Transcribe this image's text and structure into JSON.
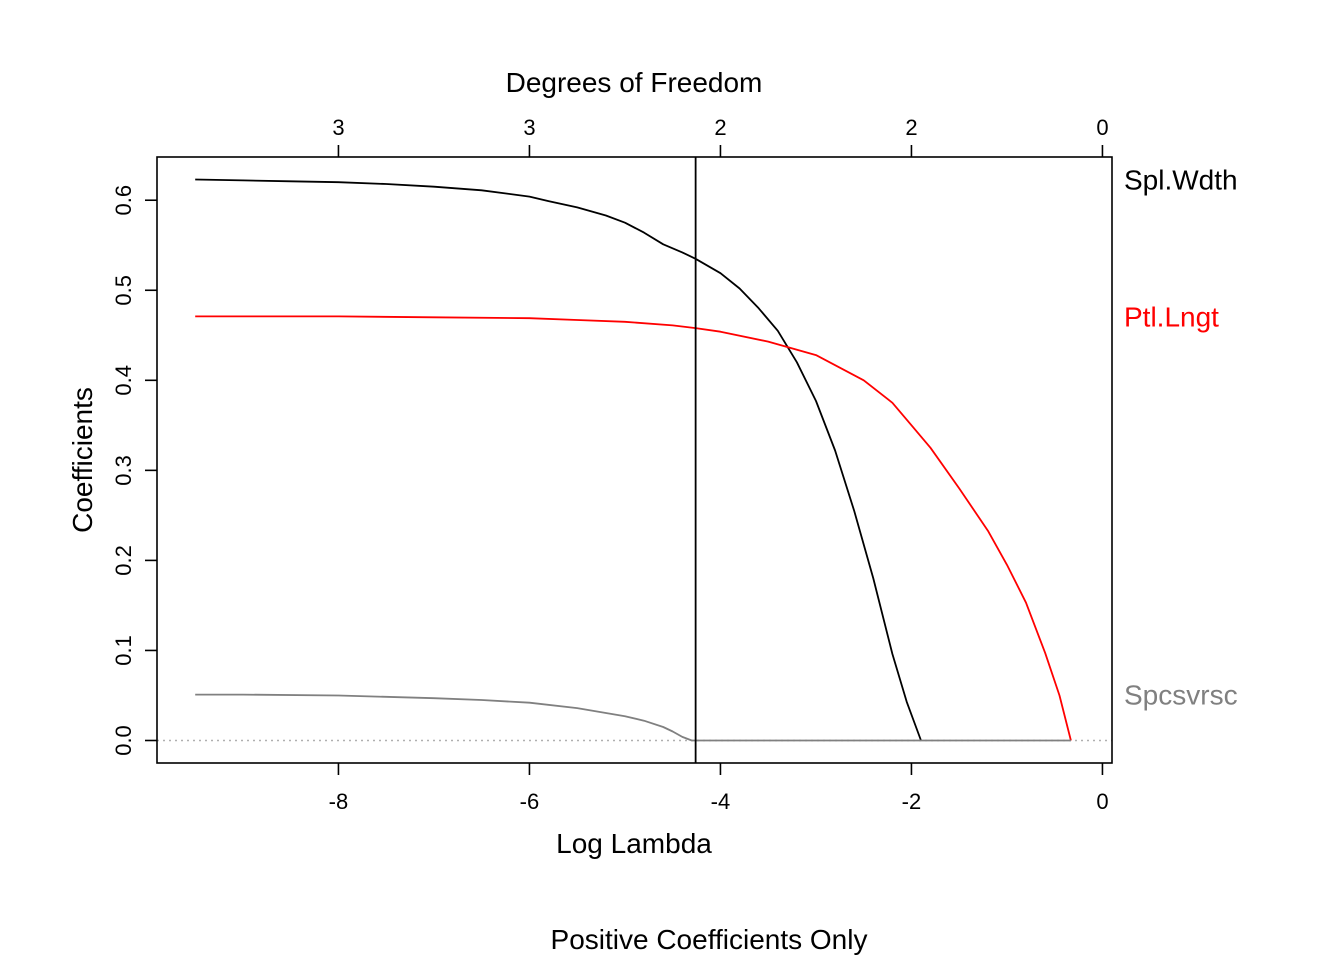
{
  "chart_data": {
    "type": "line",
    "title": "",
    "caption": "Positive Coefficients Only",
    "xlabel": "Log Lambda",
    "ylabel": "Coefficients",
    "top_axis_label": "Degrees of Freedom",
    "xlim": [
      -9.9,
      0.1
    ],
    "ylim": [
      -0.025,
      0.648
    ],
    "x_ticks": [
      -8,
      -6,
      -4,
      -2,
      0
    ],
    "x_tick_labels": [
      "-8",
      "-6",
      "-4",
      "-2",
      "0"
    ],
    "y_ticks": [
      0.0,
      0.1,
      0.2,
      0.3,
      0.4,
      0.5,
      0.6
    ],
    "y_tick_labels": [
      "0.0",
      "0.1",
      "0.2",
      "0.3",
      "0.4",
      "0.5",
      "0.6"
    ],
    "top_ticks_x": [
      -8,
      -6,
      -4,
      -2,
      0
    ],
    "top_tick_labels": [
      "3",
      "3",
      "2",
      "2",
      "0"
    ],
    "vline_x": -4.26,
    "zero_line": 0,
    "grid": false,
    "series": [
      {
        "name": "Spl.Wdth",
        "color": "#000000",
        "x": [
          -9.5,
          -9.0,
          -8.5,
          -8.0,
          -7.5,
          -7.0,
          -6.5,
          -6.0,
          -5.8,
          -5.5,
          -5.2,
          -5.0,
          -4.8,
          -4.6,
          -4.4,
          -4.26,
          -4.0,
          -3.8,
          -3.6,
          -3.4,
          -3.2,
          -3.0,
          -2.8,
          -2.6,
          -2.4,
          -2.2,
          -2.05,
          -1.9
        ],
        "values": [
          0.623,
          0.622,
          0.621,
          0.62,
          0.618,
          0.615,
          0.611,
          0.604,
          0.599,
          0.592,
          0.583,
          0.575,
          0.564,
          0.551,
          0.542,
          0.535,
          0.519,
          0.502,
          0.48,
          0.455,
          0.42,
          0.377,
          0.322,
          0.255,
          0.18,
          0.096,
          0.043,
          0.0
        ]
      },
      {
        "name": "Ptl.Lngt",
        "color": "#ff0000",
        "x": [
          -9.5,
          -9.0,
          -8.0,
          -7.0,
          -6.0,
          -5.5,
          -5.0,
          -4.5,
          -4.26,
          -4.0,
          -3.5,
          -3.0,
          -2.5,
          -2.2,
          -2.0,
          -1.8,
          -1.5,
          -1.2,
          -1.0,
          -0.8,
          -0.6,
          -0.45,
          -0.33
        ],
        "values": [
          0.471,
          0.471,
          0.471,
          0.47,
          0.469,
          0.467,
          0.465,
          0.461,
          0.458,
          0.454,
          0.443,
          0.428,
          0.4,
          0.375,
          0.35,
          0.325,
          0.28,
          0.233,
          0.195,
          0.153,
          0.097,
          0.05,
          0.0
        ]
      },
      {
        "name": "Spcsvrsc",
        "color": "#808080",
        "x": [
          -9.5,
          -9.0,
          -8.0,
          -7.0,
          -6.5,
          -6.0,
          -5.5,
          -5.0,
          -4.8,
          -4.6,
          -4.5,
          -4.4,
          -4.3,
          -4.0,
          -3.0,
          -2.0,
          -1.0,
          -0.33
        ],
        "values": [
          0.051,
          0.051,
          0.05,
          0.047,
          0.045,
          0.042,
          0.036,
          0.027,
          0.022,
          0.015,
          0.01,
          0.004,
          0.0,
          0.0,
          0.0,
          0.0,
          0.0,
          0.0
        ]
      }
    ]
  }
}
